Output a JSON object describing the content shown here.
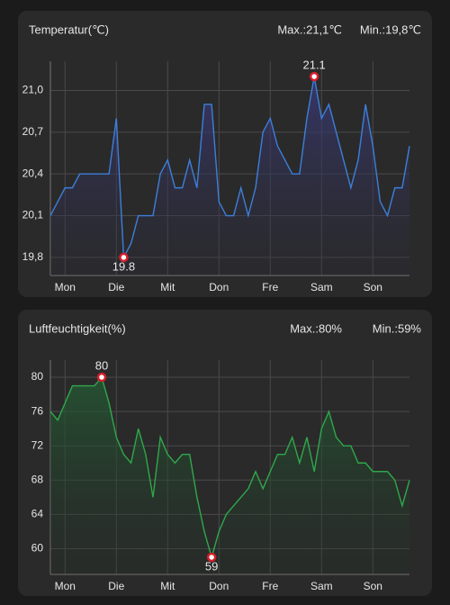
{
  "chart_data": [
    {
      "type": "line",
      "title": "Temperatur(℃)",
      "max_label": "Max.:21,1℃",
      "min_label": "Min.:19,8℃",
      "categories": [
        null,
        null,
        "Mon",
        null,
        null,
        null,
        null,
        null,
        null,
        "Die",
        null,
        null,
        null,
        null,
        null,
        null,
        "Mit",
        null,
        null,
        null,
        null,
        null,
        null,
        "Don",
        null,
        null,
        null,
        null,
        null,
        null,
        "Fre",
        null,
        null,
        null,
        null,
        null,
        null,
        "Sam",
        null,
        null,
        null,
        null,
        null,
        null,
        "Son",
        null,
        null,
        null,
        null,
        null
      ],
      "values": [
        20.1,
        20.2,
        20.3,
        20.3,
        20.4,
        20.4,
        20.4,
        20.4,
        20.4,
        20.8,
        19.8,
        19.9,
        20.1,
        20.1,
        20.1,
        20.4,
        20.5,
        20.3,
        20.3,
        20.5,
        20.3,
        20.9,
        20.9,
        20.2,
        20.1,
        20.1,
        20.3,
        20.1,
        20.3,
        20.7,
        20.8,
        20.6,
        20.5,
        20.4,
        20.4,
        20.8,
        21.1,
        20.8,
        20.9,
        20.7,
        20.5,
        20.3,
        20.5,
        20.9,
        20.6,
        20.2,
        20.1,
        20.3,
        20.3,
        20.6
      ],
      "value_labels": [
        null,
        null,
        null,
        null,
        null,
        null,
        null,
        null,
        null,
        null,
        "19.8",
        null,
        null,
        null,
        null,
        null,
        null,
        null,
        null,
        null,
        null,
        null,
        null,
        null,
        null,
        null,
        null,
        null,
        null,
        null,
        null,
        null,
        null,
        null,
        null,
        null,
        "21.1",
        null,
        null,
        null,
        null,
        null,
        null,
        null,
        null,
        null,
        null,
        null,
        null,
        null
      ],
      "color": "#3d7fd9",
      "fill": "#2b2e55",
      "ylim": [
        19.67,
        21.21
      ],
      "yticks": [
        {
          "value": 19.8,
          "label": "19,8"
        },
        {
          "value": 20.1,
          "label": "20,1"
        },
        {
          "value": 20.4,
          "label": "20,4"
        },
        {
          "value": 20.7,
          "label": "20,7"
        },
        {
          "value": 21.0,
          "label": "21,0"
        }
      ],
      "grid": true
    },
    {
      "type": "line",
      "title": "Luftfeuchtigkeit(%)",
      "max_label": "Max.:80%",
      "min_label": "Min.:59%",
      "categories": [
        null,
        null,
        "Mon",
        null,
        null,
        null,
        null,
        null,
        null,
        "Die",
        null,
        null,
        null,
        null,
        null,
        null,
        "Mit",
        null,
        null,
        null,
        null,
        null,
        null,
        "Don",
        null,
        null,
        null,
        null,
        null,
        null,
        "Fre",
        null,
        null,
        null,
        null,
        null,
        null,
        "Sam",
        null,
        null,
        null,
        null,
        null,
        null,
        "Son",
        null,
        null,
        null,
        null,
        null
      ],
      "values": [
        76,
        75,
        77,
        79,
        79,
        79,
        79,
        80,
        77,
        73,
        71,
        70,
        74,
        71,
        66,
        73,
        71,
        70,
        71,
        71,
        66,
        62,
        59,
        62,
        64,
        65,
        66,
        67,
        69,
        67,
        69,
        71,
        71,
        73,
        70,
        73,
        69,
        74,
        76,
        73,
        72,
        72,
        70,
        70,
        69,
        69,
        69,
        68,
        65,
        68
      ],
      "value_labels": [
        null,
        null,
        null,
        null,
        null,
        null,
        null,
        "80",
        null,
        null,
        null,
        null,
        null,
        null,
        null,
        null,
        null,
        null,
        null,
        null,
        null,
        null,
        "59",
        null,
        null,
        null,
        null,
        null,
        null,
        null,
        null,
        null,
        null,
        null,
        null,
        null,
        null,
        null,
        null,
        null,
        null,
        null,
        null,
        null,
        null,
        null,
        null,
        null,
        null,
        null
      ],
      "color": "#2fa84a",
      "fill": "#1f3a2a",
      "ylim": [
        57,
        82
      ],
      "yticks": [
        60,
        64,
        68,
        72,
        76,
        80
      ],
      "grid": true
    }
  ]
}
